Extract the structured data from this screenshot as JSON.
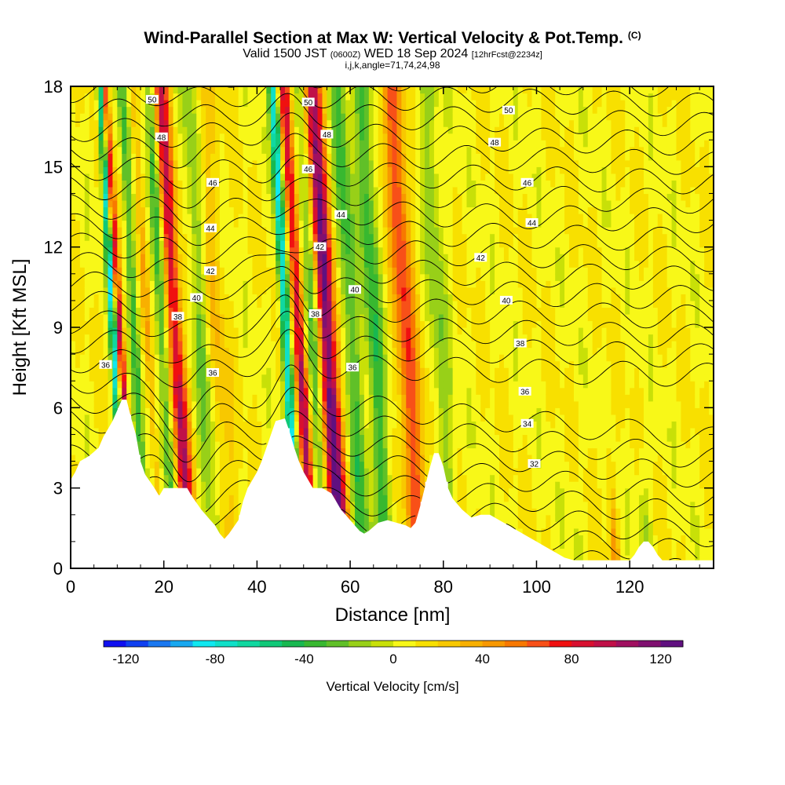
{
  "title": {
    "main": "Wind-Parallel Section at Max W: Vertical Velocity & Pot.Temp.",
    "copyright_mark": "(C)",
    "valid_prefix": "Valid 1500 JST",
    "valid_utc": "(0600Z)",
    "valid_date": "WED 18 Sep 2024",
    "forecast_info": "[12hrFcst@2234z]",
    "params": "i,j,k,angle=71,74,24,98"
  },
  "chart_data": {
    "type": "heatmap",
    "xlabel": "Distance [nm]",
    "ylabel": "Height [Kft MSL]",
    "xlim": [
      0,
      138
    ],
    "ylim": [
      0,
      18
    ],
    "x_ticks": [
      0,
      20,
      40,
      60,
      80,
      100,
      120
    ],
    "y_ticks": [
      0,
      3,
      6,
      9,
      12,
      15,
      18
    ],
    "colorbar": {
      "label": "Vertical Velocity [cm/s]",
      "ticks": [
        -120,
        -80,
        -40,
        0,
        40,
        80,
        120
      ],
      "range": [
        -130,
        130
      ],
      "colors": [
        "#1010f0",
        "#1040f0",
        "#1a78f0",
        "#18a8f0",
        "#10e8f0",
        "#10e0c8",
        "#10d8a0",
        "#10c878",
        "#18b850",
        "#38b830",
        "#60c028",
        "#98d018",
        "#c8e008",
        "#f8f818",
        "#f8e000",
        "#f8c800",
        "#f8b000",
        "#f89800",
        "#f87800",
        "#f85018",
        "#f01010",
        "#d81030",
        "#c01048",
        "#a01060",
        "#801070",
        "#601080"
      ]
    },
    "terrain_profile": {
      "x": [
        0,
        1,
        2,
        4,
        6,
        7,
        9,
        11,
        12,
        13,
        14,
        15,
        16,
        18,
        19,
        20,
        22,
        24,
        25,
        26,
        28,
        29,
        30,
        31,
        32,
        33,
        34,
        36,
        37,
        38,
        40,
        41,
        42,
        44,
        46,
        47,
        48,
        49,
        50,
        52,
        54,
        56,
        57,
        58,
        59,
        60,
        61,
        62,
        63,
        64,
        66,
        68,
        70,
        72,
        73,
        74,
        75,
        76,
        77,
        78,
        79,
        80,
        81,
        82,
        84,
        86,
        88,
        90,
        92,
        94,
        96,
        98,
        100,
        102,
        104,
        106,
        108,
        110,
        112,
        114,
        116,
        118,
        120,
        121,
        122,
        123,
        124,
        125,
        126,
        127,
        128,
        130,
        132,
        134,
        136,
        138
      ],
      "height": [
        3.3,
        3.6,
        4.0,
        4.2,
        4.5,
        4.9,
        5.5,
        6.3,
        6.3,
        5.6,
        5.0,
        4.0,
        3.5,
        3.0,
        2.7,
        3.0,
        3.0,
        3.0,
        3.0,
        2.7,
        2.2,
        2.0,
        1.8,
        1.6,
        1.3,
        1.1,
        1.3,
        1.8,
        2.5,
        3.0,
        3.6,
        4.0,
        4.5,
        5.5,
        5.6,
        5.1,
        4.5,
        4.0,
        3.6,
        3.0,
        3.0,
        2.8,
        2.5,
        2.2,
        2.0,
        1.8,
        1.6,
        1.4,
        1.3,
        1.4,
        1.7,
        1.8,
        1.7,
        1.6,
        1.5,
        1.7,
        2.3,
        3.0,
        3.7,
        4.3,
        4.3,
        3.8,
        3.0,
        2.6,
        2.2,
        1.9,
        2.0,
        2.0,
        1.8,
        1.6,
        1.4,
        1.2,
        1.0,
        0.8,
        0.6,
        0.4,
        0.3,
        0.3,
        0.3,
        0.3,
        0.3,
        0.3,
        0.3,
        0.5,
        0.8,
        1.0,
        1.0,
        0.8,
        0.5,
        0.3,
        0.3,
        0.3,
        0.3,
        0.3,
        0.3,
        0.3
      ]
    },
    "updrafts": [
      {
        "x": 11.5,
        "dx": 0.8,
        "w": 80
      },
      {
        "x": 17.5,
        "dx": 0.8,
        "w": 25
      },
      {
        "x": 23.5,
        "dx": 1.6,
        "w": 80
      },
      {
        "x": 32,
        "dx": 2.5,
        "w": 20
      },
      {
        "x": 50,
        "dx": 1.2,
        "w": 80
      },
      {
        "x": 56,
        "dx": 2.0,
        "w": 110
      },
      {
        "x": 73,
        "dx": 2.2,
        "w": 60
      },
      {
        "x": 115,
        "dx": 0.8,
        "w": 40
      }
    ],
    "downdrafts": [
      {
        "x": 10,
        "dx": 0.8,
        "w": -90
      },
      {
        "x": 14.5,
        "dx": 1.0,
        "w": -40
      },
      {
        "x": 20.5,
        "dx": 1.2,
        "w": -40
      },
      {
        "x": 29,
        "dx": 2.0,
        "w": -30
      },
      {
        "x": 47,
        "dx": 1.0,
        "w": -90
      },
      {
        "x": 53,
        "dx": 1.6,
        "w": -40
      },
      {
        "x": 61,
        "dx": 2.0,
        "w": -40
      },
      {
        "x": 66,
        "dx": 1.8,
        "w": -45
      },
      {
        "x": 80,
        "dx": 2.0,
        "w": -25
      },
      {
        "x": 107,
        "dx": 1.5,
        "w": -10
      },
      {
        "x": 122,
        "dx": 1.2,
        "w": -30
      }
    ],
    "contours": {
      "interval": 1,
      "labeled": [
        {
          "text": "36",
          "x": 7.5,
          "y": 7.6
        },
        {
          "text": "38",
          "x": 23,
          "y": 9.4
        },
        {
          "text": "40",
          "x": 27,
          "y": 10.1
        },
        {
          "text": "42",
          "x": 30,
          "y": 11.1
        },
        {
          "text": "44",
          "x": 30,
          "y": 12.7
        },
        {
          "text": "46",
          "x": 30.5,
          "y": 14.4
        },
        {
          "text": "48",
          "x": 19.5,
          "y": 16.1
        },
        {
          "text": "50",
          "x": 17.5,
          "y": 17.5
        },
        {
          "text": "36",
          "x": 30.5,
          "y": 7.3
        },
        {
          "text": "50",
          "x": 51,
          "y": 17.4
        },
        {
          "text": "48",
          "x": 55,
          "y": 16.2
        },
        {
          "text": "46",
          "x": 51,
          "y": 14.9
        },
        {
          "text": "44",
          "x": 58,
          "y": 13.2
        },
        {
          "text": "42",
          "x": 53.5,
          "y": 12.0
        },
        {
          "text": "38",
          "x": 52.5,
          "y": 9.5
        },
        {
          "text": "36",
          "x": 60.5,
          "y": 7.5
        },
        {
          "text": "40",
          "x": 61,
          "y": 10.4
        },
        {
          "text": "50",
          "x": 94,
          "y": 17.1
        },
        {
          "text": "48",
          "x": 91,
          "y": 15.9
        },
        {
          "text": "46",
          "x": 98,
          "y": 14.4
        },
        {
          "text": "44",
          "x": 99,
          "y": 12.9
        },
        {
          "text": "42",
          "x": 88,
          "y": 11.6
        },
        {
          "text": "40",
          "x": 93.5,
          "y": 10.0
        },
        {
          "text": "38",
          "x": 96.5,
          "y": 8.4
        },
        {
          "text": "36",
          "x": 97.5,
          "y": 6.6
        },
        {
          "text": "34",
          "x": 98,
          "y": 5.4
        },
        {
          "text": "32",
          "x": 99.5,
          "y": 3.9
        }
      ]
    }
  }
}
